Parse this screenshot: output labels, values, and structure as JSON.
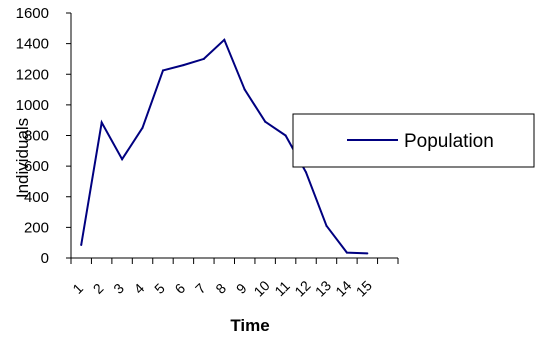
{
  "chart_data": {
    "type": "line",
    "xlabel": "Time",
    "ylabel": "Individuals",
    "categories": [
      "1",
      "2",
      "3",
      "4",
      "5",
      "6",
      "7",
      "8",
      "9",
      "10",
      "11",
      "12",
      "13",
      "14",
      "15"
    ],
    "y_ticks": [
      "0",
      "200",
      "400",
      "600",
      "800",
      "1000",
      "1200",
      "1400",
      "1600"
    ],
    "ylim": [
      0,
      1600
    ],
    "grid": false,
    "legend_position": "right",
    "series": [
      {
        "name": "Population",
        "color": "#000080",
        "values": [
          85,
          885,
          645,
          850,
          1225,
          1260,
          1300,
          1425,
          1100,
          890,
          800,
          560,
          210,
          35,
          30
        ]
      }
    ]
  }
}
